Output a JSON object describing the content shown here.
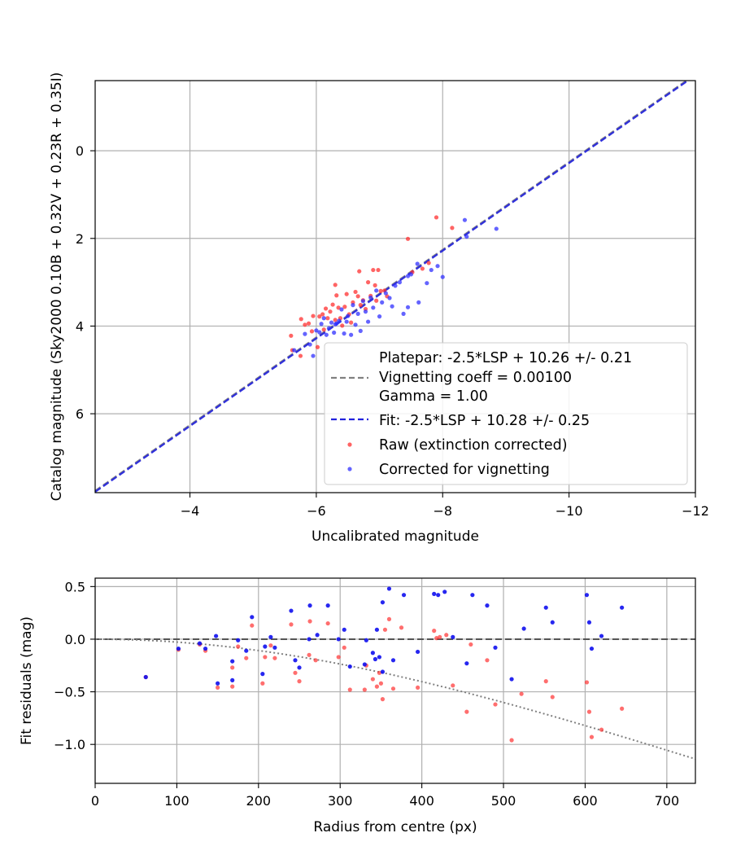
{
  "chart_data": [
    {
      "type": "scatter",
      "xlabel": "Uncalibrated magnitude",
      "ylabel": "Catalog magnitude (Sky2000 0.10B + 0.32V + 0.23R + 0.35I)",
      "xlim": [
        -2.5,
        -12
      ],
      "ylim": [
        7.8,
        -1.6
      ],
      "x_inverted": true,
      "y_inverted": true,
      "xticks": [
        -4,
        -6,
        -8,
        -10,
        -12
      ],
      "xtick_labels": [
        "−4",
        "−6",
        "−8",
        "−10",
        "−12"
      ],
      "yticks": [
        0,
        2,
        4,
        6
      ],
      "ytick_labels": [
        "0",
        "2",
        "4",
        "6"
      ],
      "grid": true,
      "legend_position": "lower-right",
      "legend": [
        {
          "label": "Platepar: -2.5*LSP + 10.26 +/- 0.21",
          "style": "none"
        },
        {
          "label": "Vignetting coeff = 0.00100",
          "style": "dashed",
          "color": "#808080"
        },
        {
          "label": "Gamma = 1.00",
          "style": "none"
        },
        {
          "label": "Fit: -2.5*LSP + 10.28 +/- 0.25",
          "style": "dashed",
          "color": "#2222dd"
        },
        {
          "label": "Raw (extinction corrected)",
          "style": "point",
          "color": "#ff3030"
        },
        {
          "label": "Corrected for vignetting",
          "style": "point",
          "color": "#3030ff"
        }
      ],
      "lines": [
        {
          "name": "Platepar",
          "slope": 1.0,
          "intercept": 10.26,
          "color": "#808080"
        },
        {
          "name": "Fit",
          "slope": 1.0,
          "intercept": 10.28,
          "color": "#2222dd"
        }
      ],
      "series": [
        {
          "name": "Raw (extinction corrected)",
          "color": "#ff3030",
          "points": [
            [
              -5.6,
              4.22
            ],
            [
              -5.62,
              4.55
            ],
            [
              -5.75,
              4.68
            ],
            [
              -5.76,
              3.84
            ],
            [
              -5.82,
              3.97
            ],
            [
              -5.88,
              3.94
            ],
            [
              -5.93,
              4.12
            ],
            [
              -5.95,
              3.77
            ],
            [
              -6.02,
              4.48
            ],
            [
              -6.05,
              3.78
            ],
            [
              -6.1,
              3.73
            ],
            [
              -6.12,
              4.08
            ],
            [
              -6.18,
              3.82
            ],
            [
              -6.22,
              3.67
            ],
            [
              -6.26,
              3.51
            ],
            [
              -6.3,
              3.86
            ],
            [
              -6.32,
              3.3
            ],
            [
              -6.35,
              3.58
            ],
            [
              -6.38,
              3.82
            ],
            [
              -6.41,
              3.99
            ],
            [
              -6.45,
              3.56
            ],
            [
              -6.48,
              3.27
            ],
            [
              -6.52,
              3.73
            ],
            [
              -6.55,
              3.92
            ],
            [
              -6.58,
              3.46
            ],
            [
              -6.62,
              3.22
            ],
            [
              -6.66,
              3.32
            ],
            [
              -6.7,
              3.52
            ],
            [
              -6.74,
              3.41
            ],
            [
              -6.78,
              3.61
            ],
            [
              -6.82,
              3.0
            ],
            [
              -6.86,
              3.31
            ],
            [
              -6.9,
              2.72
            ],
            [
              -6.93,
              3.07
            ],
            [
              -6.95,
              3.42
            ],
            [
              -6.98,
              2.72
            ],
            [
              -7.02,
              3.2
            ],
            [
              -7.08,
              3.19
            ],
            [
              -7.12,
              3.32
            ],
            [
              -6.3,
              3.06
            ],
            [
              -6.15,
              3.6
            ],
            [
              -6.68,
              2.75
            ],
            [
              -7.45,
              2.01
            ],
            [
              -7.52,
              2.77
            ],
            [
              -7.68,
              2.69
            ],
            [
              -7.78,
              2.56
            ],
            [
              -7.9,
              1.52
            ],
            [
              -8.15,
              1.76
            ]
          ]
        },
        {
          "name": "Corrected for vignetting",
          "color": "#3030ff",
          "points": [
            [
              -5.65,
              4.55
            ],
            [
              -5.82,
              4.18
            ],
            [
              -5.9,
              4.42
            ],
            [
              -5.95,
              4.68
            ],
            [
              -6.0,
              4.1
            ],
            [
              -6.05,
              4.14
            ],
            [
              -6.08,
              3.95
            ],
            [
              -6.12,
              3.82
            ],
            [
              -6.16,
              4.2
            ],
            [
              -6.2,
              4.05
            ],
            [
              -6.24,
              3.92
            ],
            [
              -6.28,
              4.15
            ],
            [
              -6.32,
              3.94
            ],
            [
              -6.36,
              3.88
            ],
            [
              -6.4,
              3.62
            ],
            [
              -6.44,
              4.17
            ],
            [
              -6.5,
              3.77
            ],
            [
              -6.55,
              4.2
            ],
            [
              -6.58,
              3.52
            ],
            [
              -6.62,
              3.97
            ],
            [
              -6.66,
              3.72
            ],
            [
              -6.7,
              4.11
            ],
            [
              -6.74,
              3.43
            ],
            [
              -6.78,
              3.67
            ],
            [
              -6.82,
              3.9
            ],
            [
              -6.86,
              3.35
            ],
            [
              -6.9,
              3.58
            ],
            [
              -6.95,
              3.19
            ],
            [
              -7.0,
              3.78
            ],
            [
              -7.04,
              3.46
            ],
            [
              -7.1,
              3.25
            ],
            [
              -7.16,
              3.36
            ],
            [
              -7.2,
              3.55
            ],
            [
              -7.25,
              3.08
            ],
            [
              -7.32,
              3.0
            ],
            [
              -7.38,
              3.72
            ],
            [
              -7.45,
              3.57
            ],
            [
              -7.5,
              2.82
            ],
            [
              -7.62,
              3.46
            ],
            [
              -7.75,
              3.02
            ],
            [
              -7.82,
              2.72
            ],
            [
              -7.92,
              2.63
            ],
            [
              -8.0,
              2.88
            ],
            [
              -8.35,
              1.58
            ],
            [
              -8.38,
              1.96
            ],
            [
              -8.85,
              1.78
            ],
            [
              -6.3,
              3.96
            ],
            [
              -6.48,
              3.9
            ],
            [
              -7.45,
              2.86
            ],
            [
              -7.6,
              2.58
            ]
          ]
        }
      ]
    },
    {
      "type": "scatter",
      "xlabel": "Radius from centre (px)",
      "ylabel": "Fit residuals (mag)",
      "xlim": [
        0,
        735
      ],
      "ylim": [
        -1.37,
        0.58
      ],
      "xticks": [
        0,
        100,
        200,
        300,
        400,
        500,
        600,
        700
      ],
      "xtick_labels": [
        "0",
        "100",
        "200",
        "300",
        "400",
        "500",
        "600",
        "700"
      ],
      "yticks": [
        0.5,
        0.0,
        -0.5,
        -1.0
      ],
      "ytick_labels": [
        "0.5",
        "0.0",
        "−0.5",
        "−1.0"
      ],
      "grid": true,
      "reference_lines": [
        {
          "name": "zero",
          "y": 0.0,
          "style": "dashed",
          "color": "#555555"
        },
        {
          "name": "vignetting model",
          "style": "dotted",
          "color": "#808080",
          "coeff": 0.001
        }
      ],
      "series": [
        {
          "name": "Raw (extinction corrected)",
          "color": "#ff3030",
          "points": [
            [
              62,
              -0.36
            ],
            [
              102,
              -0.1
            ],
            [
              128,
              -0.05
            ],
            [
              135,
              -0.11
            ],
            [
              150,
              -0.46
            ],
            [
              168,
              -0.27
            ],
            [
              168,
              -0.45
            ],
            [
              175,
              -0.07
            ],
            [
              185,
              -0.18
            ],
            [
              192,
              0.13
            ],
            [
              205,
              -0.42
            ],
            [
              208,
              -0.17
            ],
            [
              215,
              -0.06
            ],
            [
              220,
              -0.18
            ],
            [
              240,
              0.14
            ],
            [
              245,
              -0.32
            ],
            [
              250,
              -0.4
            ],
            [
              262,
              -0.15
            ],
            [
              263,
              0.17
            ],
            [
              270,
              -0.2
            ],
            [
              285,
              0.15
            ],
            [
              298,
              -0.17
            ],
            [
              305,
              -0.08
            ],
            [
              312,
              -0.48
            ],
            [
              330,
              -0.48
            ],
            [
              332,
              -0.25
            ],
            [
              340,
              -0.38
            ],
            [
              345,
              -0.45
            ],
            [
              348,
              -0.32
            ],
            [
              350,
              -0.42
            ],
            [
              352,
              -0.57
            ],
            [
              355,
              0.09
            ],
            [
              360,
              0.19
            ],
            [
              365,
              -0.47
            ],
            [
              375,
              0.11
            ],
            [
              395,
              -0.46
            ],
            [
              415,
              0.08
            ],
            [
              418,
              0.01
            ],
            [
              422,
              0.02
            ],
            [
              430,
              0.04
            ],
            [
              438,
              -0.44
            ],
            [
              455,
              -0.69
            ],
            [
              460,
              -0.05
            ],
            [
              480,
              -0.2
            ],
            [
              490,
              -0.62
            ],
            [
              510,
              -0.96
            ],
            [
              522,
              -0.52
            ],
            [
              552,
              -0.4
            ],
            [
              560,
              -0.55
            ],
            [
              602,
              -0.41
            ],
            [
              605,
              -0.69
            ],
            [
              608,
              -0.93
            ],
            [
              620,
              -0.86
            ],
            [
              645,
              -0.66
            ]
          ]
        },
        {
          "name": "Corrected for vignetting",
          "color": "#1010ee",
          "points": [
            [
              62,
              -0.36
            ],
            [
              102,
              -0.09
            ],
            [
              128,
              -0.04
            ],
            [
              135,
              -0.09
            ],
            [
              148,
              0.03
            ],
            [
              150,
              -0.42
            ],
            [
              168,
              -0.21
            ],
            [
              168,
              -0.39
            ],
            [
              175,
              -0.01
            ],
            [
              185,
              -0.11
            ],
            [
              192,
              0.21
            ],
            [
              205,
              -0.33
            ],
            [
              208,
              -0.07
            ],
            [
              215,
              0.02
            ],
            [
              220,
              -0.08
            ],
            [
              240,
              0.27
            ],
            [
              245,
              -0.2
            ],
            [
              250,
              -0.27
            ],
            [
              262,
              0.0
            ],
            [
              263,
              0.32
            ],
            [
              272,
              0.04
            ],
            [
              285,
              0.32
            ],
            [
              298,
              0.0
            ],
            [
              305,
              0.09
            ],
            [
              312,
              -0.26
            ],
            [
              330,
              -0.24
            ],
            [
              332,
              -0.01
            ],
            [
              340,
              -0.13
            ],
            [
              343,
              -0.19
            ],
            [
              345,
              0.09
            ],
            [
              348,
              -0.17
            ],
            [
              352,
              -0.31
            ],
            [
              352,
              0.35
            ],
            [
              360,
              0.48
            ],
            [
              365,
              -0.2
            ],
            [
              378,
              0.42
            ],
            [
              395,
              -0.12
            ],
            [
              415,
              0.43
            ],
            [
              420,
              0.42
            ],
            [
              428,
              0.45
            ],
            [
              438,
              0.02
            ],
            [
              455,
              -0.23
            ],
            [
              462,
              0.42
            ],
            [
              480,
              0.32
            ],
            [
              490,
              -0.08
            ],
            [
              510,
              -0.38
            ],
            [
              525,
              0.1
            ],
            [
              552,
              0.3
            ],
            [
              560,
              0.16
            ],
            [
              602,
              0.42
            ],
            [
              605,
              0.16
            ],
            [
              608,
              -0.09
            ],
            [
              620,
              0.03
            ],
            [
              645,
              0.3
            ]
          ]
        }
      ]
    }
  ]
}
